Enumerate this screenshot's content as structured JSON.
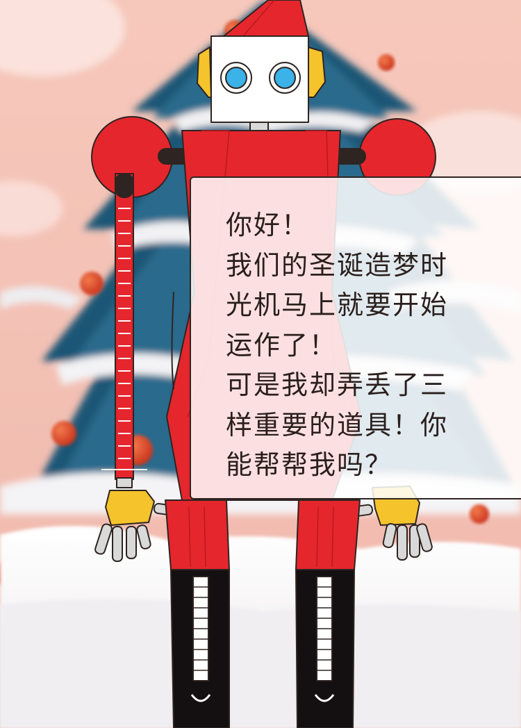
{
  "colors": {
    "sky": "#f4c4b8",
    "snow": "#f7f4f3",
    "tree_dark": "#1c4e6e",
    "robot_red": "#e5262d",
    "robot_yellow": "#f5c32b",
    "eye_blue": "#3bb2e8",
    "outline": "#2e2421"
  },
  "icons": {
    "hat": "robot-hat-icon",
    "face": "robot-face-icon"
  },
  "dialog": {
    "lines": [
      "你好！",
      "我们的圣诞造梦时",
      "光机马上就要开始",
      "运作了！",
      "可是我却弄丢了三",
      "样重要的道具！你",
      "能帮帮我吗？"
    ]
  }
}
